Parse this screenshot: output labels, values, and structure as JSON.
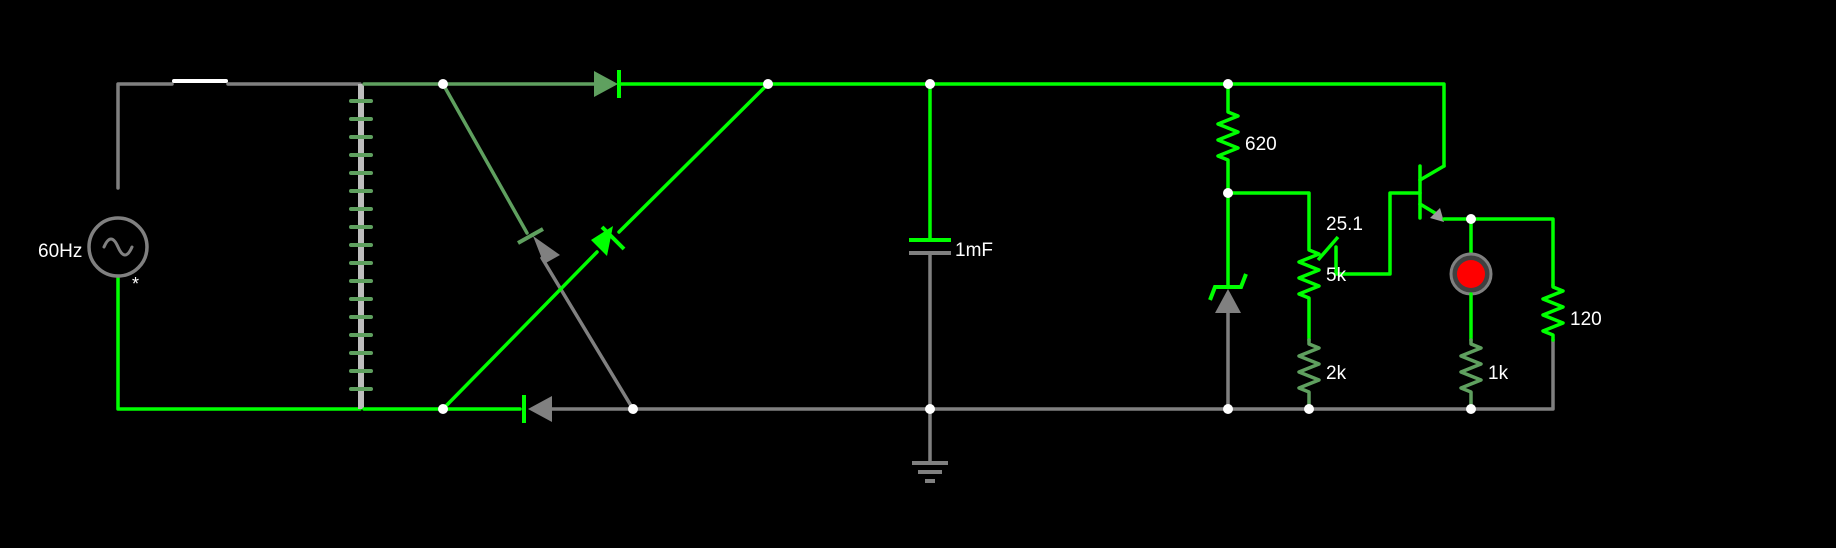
{
  "colors": {
    "background": "#000000",
    "live_wire": "#00ff00",
    "idle_wire": "#808080",
    "mid_wire": "#5fa05f",
    "lamp": "#ff0000",
    "node": "#ffffff"
  },
  "labels": {
    "source_frequency": "60Hz",
    "source_marker": "*",
    "capacitor": "1mF",
    "resistor_top": "620",
    "potentiometer_value": "25.1",
    "potentiometer_total": "5k",
    "resistor_bottom": "2k",
    "resistor_lamp": "1k",
    "resistor_load": "120"
  },
  "components": [
    {
      "name": "ac-source",
      "value": "60Hz"
    },
    {
      "name": "switch"
    },
    {
      "name": "transformer"
    },
    {
      "name": "bridge-rectifier-diodes",
      "count": 4
    },
    {
      "name": "filter-capacitor",
      "value": "1mF"
    },
    {
      "name": "ground"
    },
    {
      "name": "resistor",
      "value": "620"
    },
    {
      "name": "zener-diode"
    },
    {
      "name": "potentiometer",
      "value": "5k",
      "setting": "25.1"
    },
    {
      "name": "resistor",
      "value": "2k"
    },
    {
      "name": "npn-transistor"
    },
    {
      "name": "lamp"
    },
    {
      "name": "resistor",
      "value": "1k"
    },
    {
      "name": "resistor",
      "value": "120"
    }
  ]
}
